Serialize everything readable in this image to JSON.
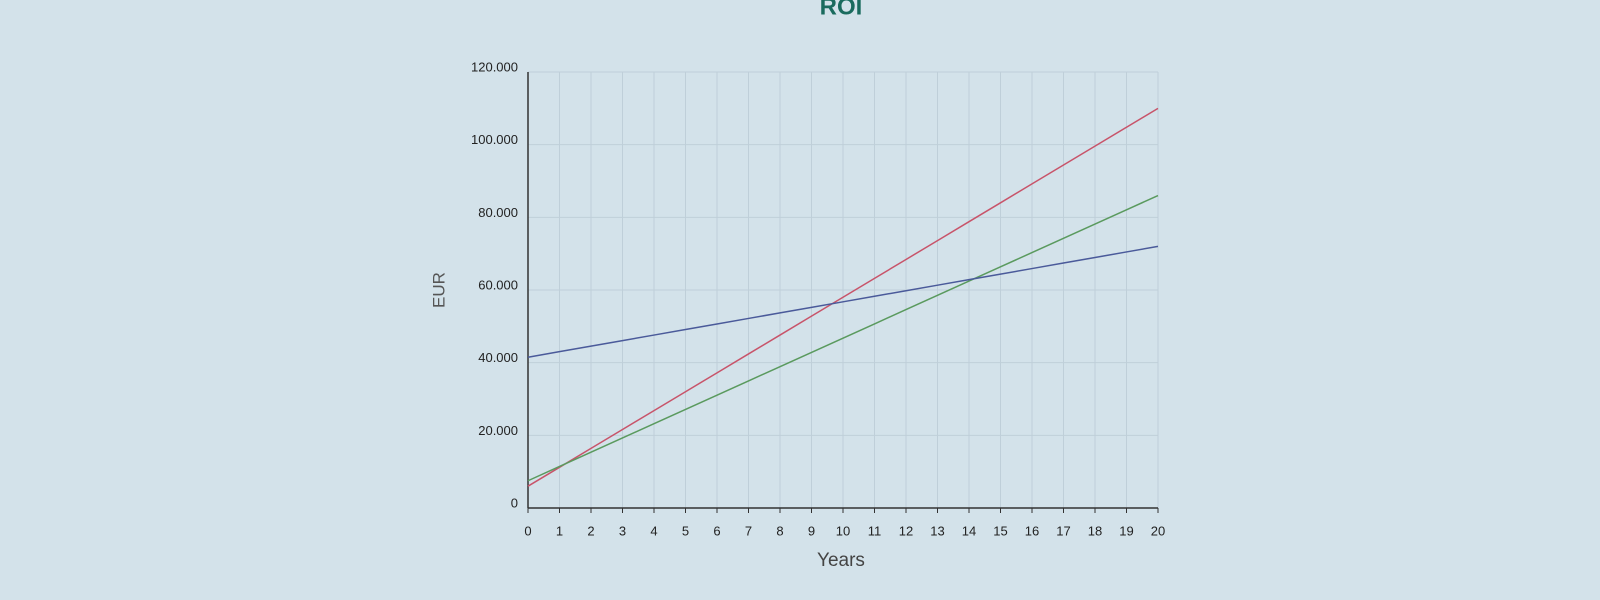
{
  "chart_data": {
    "type": "line",
    "title": "ROI",
    "x_label": "Years",
    "y_label": "EUR",
    "x": [
      0,
      1,
      2,
      3,
      4,
      5,
      6,
      7,
      8,
      9,
      10,
      11,
      12,
      13,
      14,
      15,
      16,
      17,
      18,
      19,
      20
    ],
    "series": [
      {
        "color": "#c8546a",
        "values": [
          6000,
          11200,
          16400,
          21600,
          26800,
          32000,
          37200,
          42400,
          47600,
          52800,
          58000,
          63200,
          68400,
          73600,
          78800,
          84000,
          89200,
          94400,
          99600,
          104800,
          110000
        ]
      },
      {
        "color": "#5a9a5e",
        "values": [
          7500,
          11425,
          15350,
          19275,
          23200,
          27125,
          31050,
          34975,
          38900,
          42825,
          46750,
          50675,
          54600,
          58525,
          62450,
          66375,
          70300,
          74225,
          78150,
          82075,
          86000
        ]
      },
      {
        "color": "#4a5a9a",
        "values": [
          41500,
          43025,
          44550,
          46075,
          47600,
          49125,
          50650,
          52175,
          53700,
          55225,
          56750,
          58275,
          59800,
          61325,
          62850,
          64375,
          65900,
          67425,
          68950,
          70475,
          72000
        ]
      }
    ],
    "xlim": [
      0,
      20
    ],
    "xticks": [
      0,
      1,
      2,
      3,
      4,
      5,
      6,
      7,
      8,
      9,
      10,
      11,
      12,
      13,
      14,
      15,
      16,
      17,
      18,
      19,
      20
    ],
    "ylim": [
      0,
      120000
    ],
    "yticks": [
      0,
      {
        "value": 20000,
        "label": "20.000"
      },
      {
        "value": 40000,
        "label": "40.000"
      },
      {
        "value": 60000,
        "label": "60.000"
      },
      {
        "value": 80000,
        "label": "80.000"
      },
      {
        "value": 100000,
        "label": "100.000"
      },
      {
        "value": 120000,
        "label": "120.000"
      }
    ],
    "grid": true
  }
}
